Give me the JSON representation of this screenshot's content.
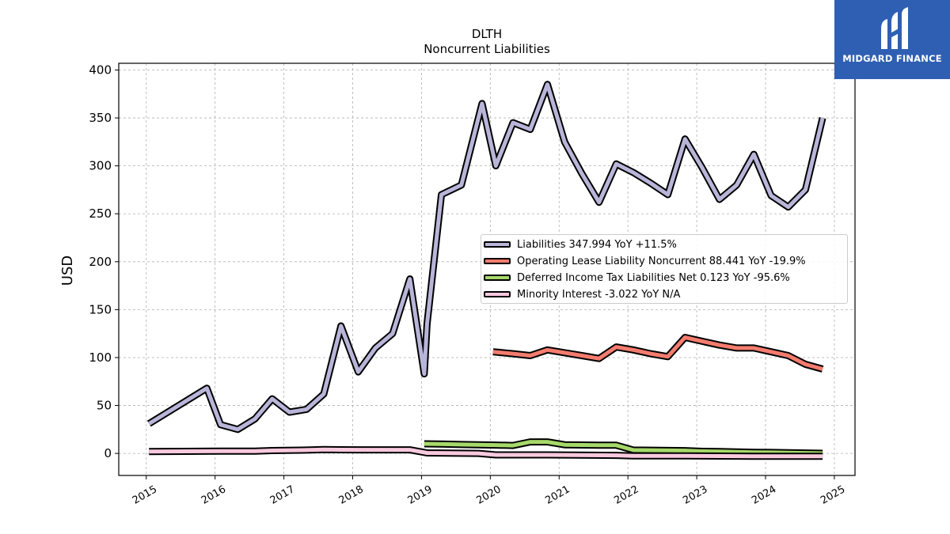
{
  "brand": {
    "name": "MIDGARD FINANCE",
    "logo_color": "#2f5fb3"
  },
  "chart_data": {
    "type": "line",
    "title": "DLTH",
    "subtitle": "Noncurrent  Liabilities",
    "ylabel": "USD",
    "xlabel": "",
    "ylim": [
      -23,
      407
    ],
    "xlim": [
      2014.6,
      2025.3
    ],
    "yticks": [
      0,
      50,
      100,
      150,
      200,
      250,
      300,
      350,
      400
    ],
    "xticks": [
      "2015",
      "2016",
      "2017",
      "2018",
      "2019",
      "2020",
      "2021",
      "2022",
      "2023",
      "2024",
      "2025"
    ],
    "grid": true,
    "legend_position": "center-right",
    "series": [
      {
        "name": "Liabilities",
        "legend_label": "Liabilities  347.994 YoY +11.5%",
        "color": "#b9b5d9",
        "x": [
          2015.04,
          2015.88,
          2016.08,
          2016.33,
          2016.58,
          2016.83,
          2017.08,
          2017.33,
          2017.58,
          2017.83,
          2018.08,
          2018.33,
          2018.58,
          2018.83,
          2019.04,
          2019.08,
          2019.29,
          2019.58,
          2019.88,
          2020.08,
          2020.33,
          2020.58,
          2020.83,
          2021.08,
          2021.33,
          2021.58,
          2021.83,
          2022.08,
          2022.33,
          2022.58,
          2022.83,
          2023.08,
          2023.33,
          2023.58,
          2023.83,
          2024.08,
          2024.33,
          2024.58,
          2024.83
        ],
        "y": [
          31,
          68,
          30,
          25,
          36,
          57,
          43,
          46,
          62,
          133,
          85,
          110,
          125,
          182,
          83,
          135,
          270,
          280,
          365,
          300,
          345,
          338,
          385,
          325,
          292,
          262,
          302,
          293,
          282,
          270,
          328,
          298,
          265,
          280,
          312,
          269,
          257,
          275,
          350
        ]
      },
      {
        "name": "Operating Lease Liability Noncurrent",
        "legend_label": "Operating Lease Liability Noncurrent  88.441 YoY -19.9%",
        "color": "#f47c6e",
        "x": [
          2020.04,
          2020.33,
          2020.58,
          2020.83,
          2021.08,
          2021.33,
          2021.58,
          2021.83,
          2022.08,
          2022.33,
          2022.58,
          2022.83,
          2023.08,
          2023.33,
          2023.58,
          2023.83,
          2024.08,
          2024.33,
          2024.58,
          2024.83
        ],
        "y": [
          106,
          104,
          102,
          108,
          105,
          102,
          99,
          111,
          108,
          104,
          101,
          121,
          117,
          113,
          110,
          110,
          106,
          102,
          93,
          88
        ]
      },
      {
        "name": "Deferred Income Tax Liabilities Net",
        "legend_label": "Deferred Income Tax Liabilities Net  0.123 YoY -95.6%",
        "color": "#a6d96a",
        "x": [
          2019.04,
          2019.33,
          2019.58,
          2019.83,
          2020.08,
          2020.33,
          2020.58,
          2020.83,
          2021.08,
          2021.33,
          2021.58,
          2021.83,
          2022.08,
          2022.33,
          2022.58,
          2022.83,
          2023.08,
          2023.33,
          2023.58,
          2023.83,
          2024.08,
          2024.33,
          2024.58,
          2024.83
        ],
        "y": [
          10,
          9.7,
          9.3,
          9,
          8.7,
          8.3,
          12,
          12,
          9,
          8.8,
          8.6,
          8.5,
          3.5,
          3.3,
          3.1,
          2.9,
          2.2,
          1.9,
          1.6,
          1.2,
          1.0,
          0.7,
          0.4,
          0.1
        ]
      },
      {
        "name": "Minority Interest",
        "legend_label": "Minority Interest  -3.022 YoY N/A",
        "color": "#f9c9de",
        "x": [
          2015.04,
          2015.58,
          2016.08,
          2016.58,
          2016.83,
          2017.33,
          2017.58,
          2017.83,
          2018.08,
          2018.58,
          2018.83,
          2019.08,
          2019.83,
          2020.08,
          2020.83,
          2021.83,
          2022.08,
          2022.83,
          2023.83,
          2024.83
        ],
        "y": [
          2,
          2.2,
          2.3,
          2.4,
          3,
          3.5,
          4,
          3.8,
          3.7,
          3.7,
          3.7,
          0.5,
          0,
          -1.5,
          -1.5,
          -2,
          -2.5,
          -2.5,
          -3,
          -3
        ]
      }
    ]
  }
}
